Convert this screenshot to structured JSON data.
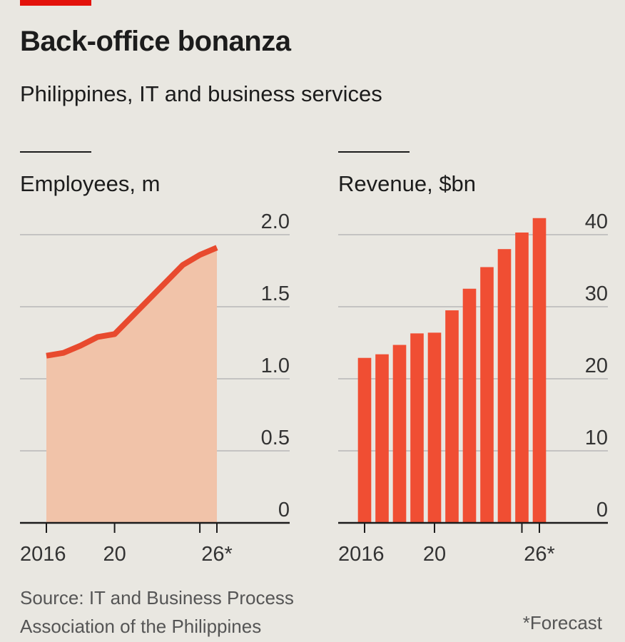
{
  "header": {
    "title": "Back-office bonanza",
    "subtitle": "Philippines, IT and business services"
  },
  "colors": {
    "accent_red": "#e3120b",
    "bar_red": "#f04e33",
    "area_fill": "#f1c3a9",
    "line_red": "#e84a2e",
    "gridline": "#b7b7b7",
    "background": "#e9e7e1"
  },
  "chart_data": [
    {
      "type": "area",
      "title": "Employees, m",
      "x": [
        2016,
        2017,
        2018,
        2019,
        2020,
        2021,
        2022,
        2023,
        2024,
        2025,
        2026
      ],
      "values": [
        1.16,
        1.18,
        1.23,
        1.29,
        1.31,
        1.43,
        1.55,
        1.67,
        1.79,
        1.86,
        1.91
      ],
      "ylim": [
        0,
        2
      ],
      "yticks": [
        "0",
        "0.5",
        "1.0",
        "1.5",
        "2.0"
      ],
      "ytick_values": [
        0,
        0.5,
        1.0,
        1.5,
        2.0
      ],
      "xtick_labels": [
        "2016",
        "20",
        "26*"
      ],
      "xtick_values": [
        2016,
        2020,
        2026
      ],
      "xtick_marks": [
        2016,
        2020,
        2025,
        2026
      ],
      "grid": true
    },
    {
      "type": "bar",
      "title": "Revenue, $bn",
      "x": [
        2016,
        2017,
        2018,
        2019,
        2020,
        2021,
        2022,
        2023,
        2024,
        2025,
        2026
      ],
      "values": [
        22.9,
        23.4,
        24.7,
        26.3,
        26.4,
        29.5,
        32.5,
        35.5,
        38.0,
        40.3,
        42.3
      ],
      "ylim": [
        0,
        40
      ],
      "yticks": [
        "0",
        "10",
        "20",
        "30",
        "40"
      ],
      "ytick_values": [
        0,
        10,
        20,
        30,
        40
      ],
      "xtick_labels": [
        "2016",
        "20",
        "26*"
      ],
      "xtick_values": [
        2016,
        2020,
        2026
      ],
      "xtick_marks": [
        2016,
        2020,
        2025,
        2026
      ],
      "grid": true
    }
  ],
  "footer": {
    "source_line1": "Source: IT and Business Process",
    "source_line2": "Association of the Philippines",
    "footnote": "*Forecast"
  }
}
